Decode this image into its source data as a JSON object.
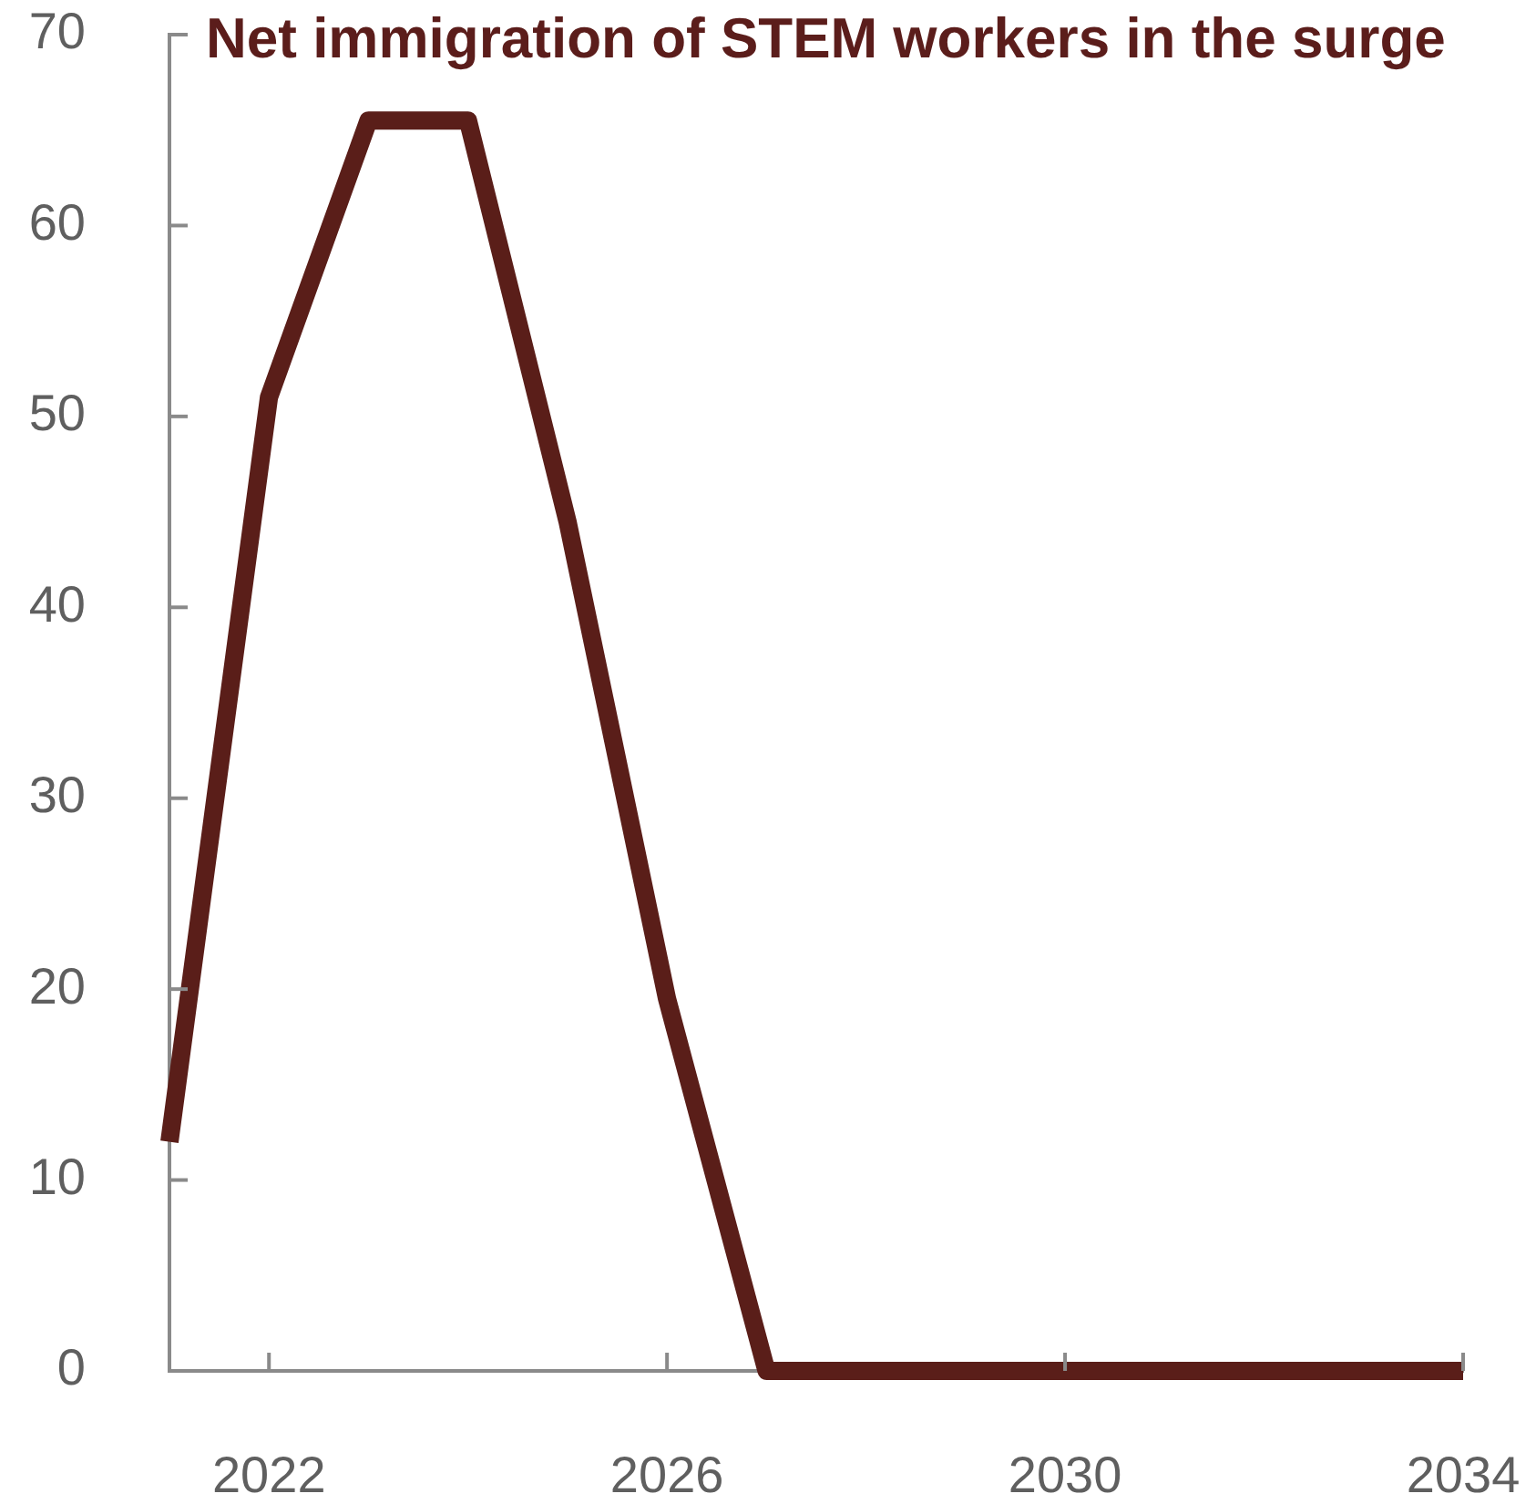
{
  "chart_data": {
    "type": "line",
    "title": "Net immigration of STEM workers in the surge",
    "x": [
      2021,
      2022,
      2023,
      2024,
      2025,
      2026,
      2027,
      2028,
      2029,
      2030,
      2031,
      2032,
      2033,
      2034
    ],
    "series": [
      {
        "color": "#5a1e19",
        "values": [
          12,
          51,
          65.5,
          65.5,
          44.5,
          19.5,
          0,
          0,
          0,
          0,
          0,
          0,
          0,
          0
        ]
      }
    ],
    "xlim": [
      2021,
      2034
    ],
    "xticks": [
      2022,
      2026,
      2030,
      2034
    ],
    "ylim": [
      0,
      70
    ],
    "yticks": [
      0,
      10,
      20,
      30,
      40,
      50,
      60,
      70
    ],
    "grid": false,
    "legend": false,
    "marker": "none",
    "line_style": "solid"
  }
}
